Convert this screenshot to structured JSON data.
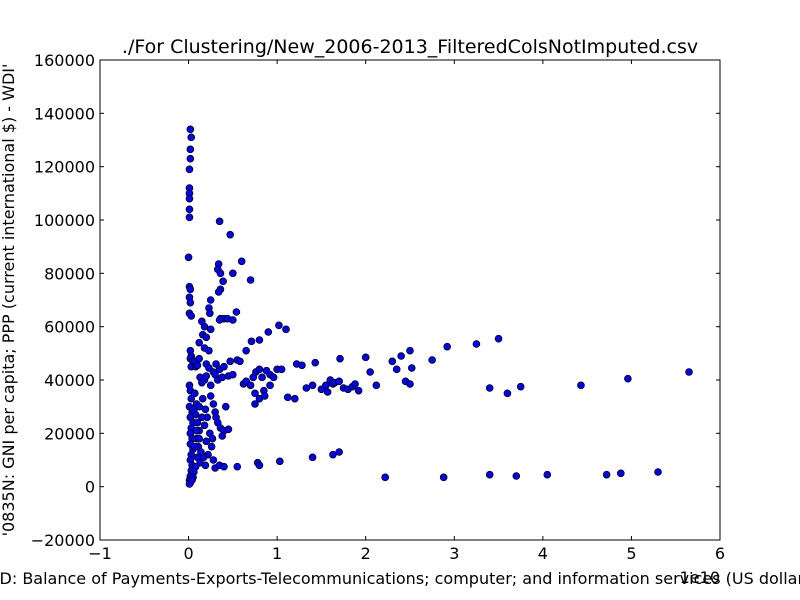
{
  "chart_data": {
    "type": "scatter",
    "title": "./For Clustering/New_2006-2013_FilteredColsNotImputed.csv",
    "xlabel": "'BX.GSR.CCIS.CD: Balance of Payments-Exports-Telecommunications; computer; and information services (US dollar at current price)'",
    "ylabel": "'0835N: GNI per capita; PPP  (current international $) - WDI'",
    "x_offset_text": "1e10",
    "xlim": [
      -1,
      6
    ],
    "ylim": [
      -20000,
      160000
    ],
    "xticks": [
      "−1",
      "0",
      "1",
      "2",
      "3",
      "4",
      "5",
      "6"
    ],
    "yticks": [
      "−20000",
      "0",
      "20000",
      "40000",
      "60000",
      "80000",
      "100000",
      "120000",
      "140000",
      "160000"
    ],
    "grid": false,
    "marker_color": "#0000ff",
    "marker_edge": "#000000",
    "points": [
      [
        0.02,
        134000
      ],
      [
        0.03,
        131000
      ],
      [
        0.02,
        126500
      ],
      [
        0.02,
        123000
      ],
      [
        0.01,
        119000
      ],
      [
        0.01,
        112000
      ],
      [
        0.01,
        110000
      ],
      [
        0.01,
        108000
      ],
      [
        0.01,
        104000
      ],
      [
        0.01,
        101000
      ],
      [
        0.0,
        86000
      ],
      [
        0.01,
        75000
      ],
      [
        0.02,
        74000
      ],
      [
        0.01,
        71000
      ],
      [
        0.02,
        69000
      ],
      [
        0.01,
        65000
      ],
      [
        0.03,
        64000
      ],
      [
        0.35,
        99500
      ],
      [
        0.47,
        94500
      ],
      [
        0.34,
        83500
      ],
      [
        0.33,
        81500
      ],
      [
        0.36,
        80000
      ],
      [
        0.5,
        80000
      ],
      [
        0.39,
        77000
      ],
      [
        0.36,
        74000
      ],
      [
        0.34,
        73000
      ],
      [
        0.6,
        84500
      ],
      [
        0.7,
        77500
      ],
      [
        0.25,
        70000
      ],
      [
        0.23,
        67000
      ],
      [
        0.24,
        65000
      ],
      [
        0.36,
        63000
      ],
      [
        0.4,
        63000
      ],
      [
        0.44,
        63000
      ],
      [
        0.5,
        62500
      ],
      [
        0.54,
        65500
      ],
      [
        0.35,
        62500
      ],
      [
        0.15,
        62000
      ],
      [
        0.18,
        60000
      ],
      [
        0.25,
        59000
      ],
      [
        0.16,
        57000
      ],
      [
        0.2,
        56000
      ],
      [
        0.12,
        54000
      ],
      [
        0.18,
        52000
      ],
      [
        0.23,
        51000
      ],
      [
        0.71,
        54500
      ],
      [
        0.8,
        55000
      ],
      [
        0.9,
        58000
      ],
      [
        1.02,
        60500
      ],
      [
        1.1,
        59000
      ],
      [
        0.65,
        51000
      ],
      [
        0.02,
        51000
      ],
      [
        0.03,
        49000
      ],
      [
        0.02,
        48000
      ],
      [
        0.03,
        45000
      ],
      [
        0.05,
        47000
      ],
      [
        0.07,
        47000
      ],
      [
        0.08,
        45000
      ],
      [
        0.1,
        45500
      ],
      [
        0.12,
        48000
      ],
      [
        0.2,
        46000
      ],
      [
        0.23,
        44500
      ],
      [
        0.28,
        43000
      ],
      [
        0.31,
        46000
      ],
      [
        0.35,
        44000
      ],
      [
        0.4,
        45000
      ],
      [
        0.47,
        47000
      ],
      [
        0.55,
        47500
      ],
      [
        0.58,
        47000
      ],
      [
        0.13,
        41000
      ],
      [
        0.15,
        39000
      ],
      [
        0.18,
        40000
      ],
      [
        0.2,
        41500
      ],
      [
        0.25,
        38000
      ],
      [
        0.3,
        42000
      ],
      [
        0.33,
        40000
      ],
      [
        0.38,
        41000
      ],
      [
        0.45,
        41500
      ],
      [
        0.5,
        42000
      ],
      [
        0.62,
        38500
      ],
      [
        0.65,
        39500
      ],
      [
        0.7,
        38000
      ],
      [
        0.73,
        41000
      ],
      [
        0.76,
        43000
      ],
      [
        0.8,
        44000
      ],
      [
        0.83,
        41000
      ],
      [
        0.88,
        43500
      ],
      [
        0.92,
        42000
      ],
      [
        0.96,
        41000
      ],
      [
        1.0,
        44000
      ],
      [
        1.05,
        44000
      ],
      [
        0.75,
        35000
      ],
      [
        0.8,
        33000
      ],
      [
        0.85,
        36000
      ],
      [
        0.86,
        34000
      ],
      [
        0.75,
        31000
      ],
      [
        0.92,
        38000
      ],
      [
        1.12,
        33500
      ],
      [
        1.2,
        33000
      ],
      [
        1.22,
        46000
      ],
      [
        1.28,
        45500
      ],
      [
        1.33,
        37000
      ],
      [
        1.4,
        38000
      ],
      [
        1.43,
        46500
      ],
      [
        1.5,
        36500
      ],
      [
        1.55,
        38000
      ],
      [
        1.57,
        35500
      ],
      [
        1.6,
        40000
      ],
      [
        1.63,
        38500
      ],
      [
        1.65,
        39000
      ],
      [
        1.7,
        39500
      ],
      [
        1.71,
        48000
      ],
      [
        1.75,
        37000
      ],
      [
        1.8,
        36500
      ],
      [
        1.85,
        37500
      ],
      [
        1.88,
        38500
      ],
      [
        1.92,
        36000
      ],
      [
        2.0,
        48500
      ],
      [
        2.05,
        43000
      ],
      [
        2.12,
        38000
      ],
      [
        2.3,
        47000
      ],
      [
        2.35,
        44000
      ],
      [
        2.4,
        49000
      ],
      [
        2.45,
        39500
      ],
      [
        2.5,
        51000
      ],
      [
        2.52,
        44500
      ],
      [
        2.5,
        38500
      ],
      [
        2.75,
        47500
      ],
      [
        2.92,
        52500
      ],
      [
        3.25,
        53500
      ],
      [
        3.4,
        37000
      ],
      [
        3.5,
        55500
      ],
      [
        3.6,
        35000
      ],
      [
        3.75,
        37500
      ],
      [
        4.43,
        38000
      ],
      [
        4.96,
        40500
      ],
      [
        5.65,
        43000
      ],
      [
        0.55,
        7500
      ],
      [
        0.78,
        9000
      ],
      [
        0.8,
        8000
      ],
      [
        1.03,
        9500
      ],
      [
        1.4,
        11000
      ],
      [
        1.63,
        12000
      ],
      [
        1.7,
        13000
      ],
      [
        2.22,
        3500
      ],
      [
        2.88,
        3500
      ],
      [
        3.4,
        4500
      ],
      [
        3.7,
        4000
      ],
      [
        4.05,
        4500
      ],
      [
        4.72,
        4500
      ],
      [
        4.88,
        5000
      ],
      [
        5.3,
        5500
      ],
      [
        0.01,
        38000
      ],
      [
        0.02,
        36000
      ],
      [
        0.03,
        33000
      ],
      [
        0.01,
        30000
      ],
      [
        0.04,
        28000
      ],
      [
        0.02,
        26000
      ],
      [
        0.05,
        24000
      ],
      [
        0.03,
        22000
      ],
      [
        0.02,
        20000
      ],
      [
        0.04,
        18000
      ],
      [
        0.02,
        16000
      ],
      [
        0.05,
        14000
      ],
      [
        0.03,
        12000
      ],
      [
        0.02,
        10000
      ],
      [
        0.04,
        8000
      ],
      [
        0.03,
        6000
      ],
      [
        0.02,
        4000
      ],
      [
        0.01,
        2500
      ],
      [
        0.02,
        1500
      ],
      [
        0.01,
        1000
      ],
      [
        0.07,
        35000
      ],
      [
        0.09,
        31000
      ],
      [
        0.08,
        27000
      ],
      [
        0.1,
        24000
      ],
      [
        0.12,
        21000
      ],
      [
        0.09,
        18000
      ],
      [
        0.11,
        15000
      ],
      [
        0.14,
        13000
      ],
      [
        0.1,
        11000
      ],
      [
        0.13,
        9000
      ],
      [
        0.08,
        7500
      ],
      [
        0.06,
        5500
      ],
      [
        0.05,
        3500
      ],
      [
        0.04,
        2500
      ],
      [
        0.16,
        33000
      ],
      [
        0.19,
        29000
      ],
      [
        0.21,
        26000
      ],
      [
        0.18,
        23000
      ],
      [
        0.24,
        20000
      ],
      [
        0.2,
        17000
      ],
      [
        0.26,
        15000
      ],
      [
        0.22,
        12000
      ],
      [
        0.28,
        10000
      ],
      [
        0.19,
        8000
      ],
      [
        0.3,
        7000
      ],
      [
        0.35,
        8000
      ],
      [
        0.4,
        7500
      ],
      [
        0.25,
        34000
      ],
      [
        0.28,
        31000
      ],
      [
        0.3,
        28000
      ],
      [
        0.33,
        24000
      ],
      [
        0.36,
        22000
      ],
      [
        0.4,
        21000
      ],
      [
        0.45,
        21500
      ],
      [
        0.38,
        19000
      ],
      [
        0.42,
        30000
      ],
      [
        0.31,
        26000
      ],
      [
        0.27,
        18000
      ],
      [
        0.15,
        26000
      ],
      [
        0.12,
        30000
      ],
      [
        0.06,
        29000
      ],
      [
        0.09,
        21000
      ],
      [
        0.07,
        15000
      ],
      [
        0.12,
        18000
      ],
      [
        0.17,
        11000
      ]
    ]
  }
}
